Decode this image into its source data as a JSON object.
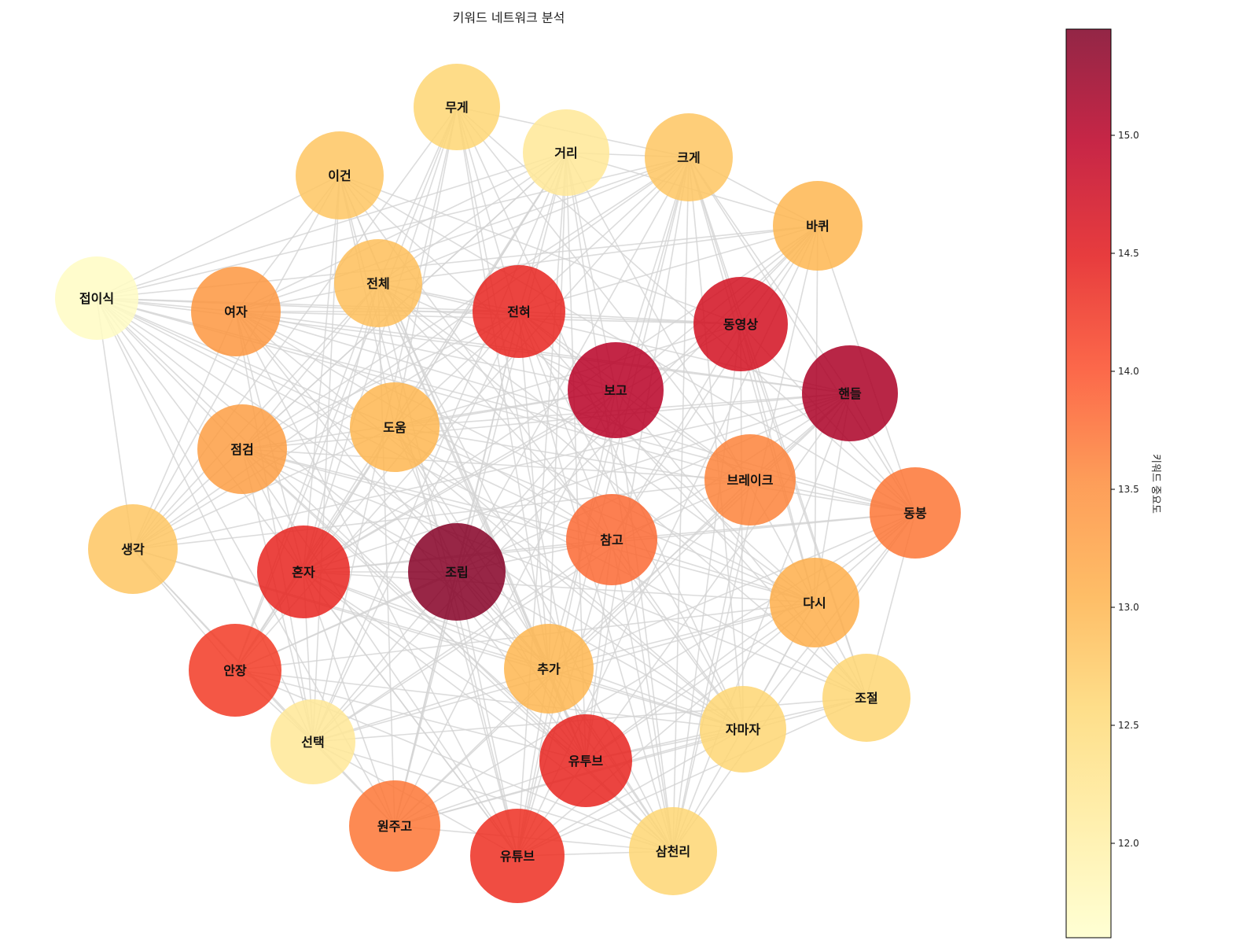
{
  "title": "키워드 네트워크 분석",
  "colorbar": {
    "label": "키워드 중요도",
    "min": 11.6,
    "max": 15.45,
    "ticks": [
      "12.0",
      "12.5",
      "13.0",
      "13.5",
      "14.0",
      "14.5",
      "15.0"
    ],
    "tick_values": [
      12.0,
      12.5,
      13.0,
      13.5,
      14.0,
      14.5,
      15.0
    ],
    "colormap": "YlOrRd",
    "stops": [
      "#ffffcc",
      "#ffeda0",
      "#fed976",
      "#feb24c",
      "#fd8d3c",
      "#fc4e2a",
      "#e31a1c",
      "#bd0026",
      "#800026"
    ]
  },
  "edge_color": "#d3d3d3",
  "nodes": [
    {
      "label": "무게",
      "importance": 12.6
    },
    {
      "label": "거리",
      "importance": 12.2
    },
    {
      "label": "크게",
      "importance": 12.8
    },
    {
      "label": "이건",
      "importance": 12.8
    },
    {
      "label": "바퀴",
      "importance": 13.0
    },
    {
      "label": "접이식",
      "importance": 11.7
    },
    {
      "label": "여자",
      "importance": 13.4
    },
    {
      "label": "전체",
      "importance": 12.9
    },
    {
      "label": "전혀",
      "importance": 14.4
    },
    {
      "label": "동영상",
      "importance": 14.7
    },
    {
      "label": "보고",
      "importance": 15.0
    },
    {
      "label": "핸들",
      "importance": 15.1
    },
    {
      "label": "도움",
      "importance": 13.0
    },
    {
      "label": "점검",
      "importance": 13.3
    },
    {
      "label": "브레이크",
      "importance": 13.6
    },
    {
      "label": "동봉",
      "importance": 13.7
    },
    {
      "label": "생각",
      "importance": 12.8
    },
    {
      "label": "혼자",
      "importance": 14.4
    },
    {
      "label": "조립",
      "importance": 15.4
    },
    {
      "label": "참고",
      "importance": 13.8
    },
    {
      "label": "다시",
      "importance": 13.1
    },
    {
      "label": "안장",
      "importance": 14.2
    },
    {
      "label": "추가",
      "importance": 13.0
    },
    {
      "label": "조절",
      "importance": 12.6
    },
    {
      "label": "선택",
      "importance": 12.2
    },
    {
      "label": "자마자",
      "importance": 12.6
    },
    {
      "label": "유투브",
      "importance": 14.4
    },
    {
      "label": "원주고",
      "importance": 13.7
    },
    {
      "label": "유튜브",
      "importance": 14.3
    },
    {
      "label": "삼천리",
      "importance": 12.6
    }
  ]
}
